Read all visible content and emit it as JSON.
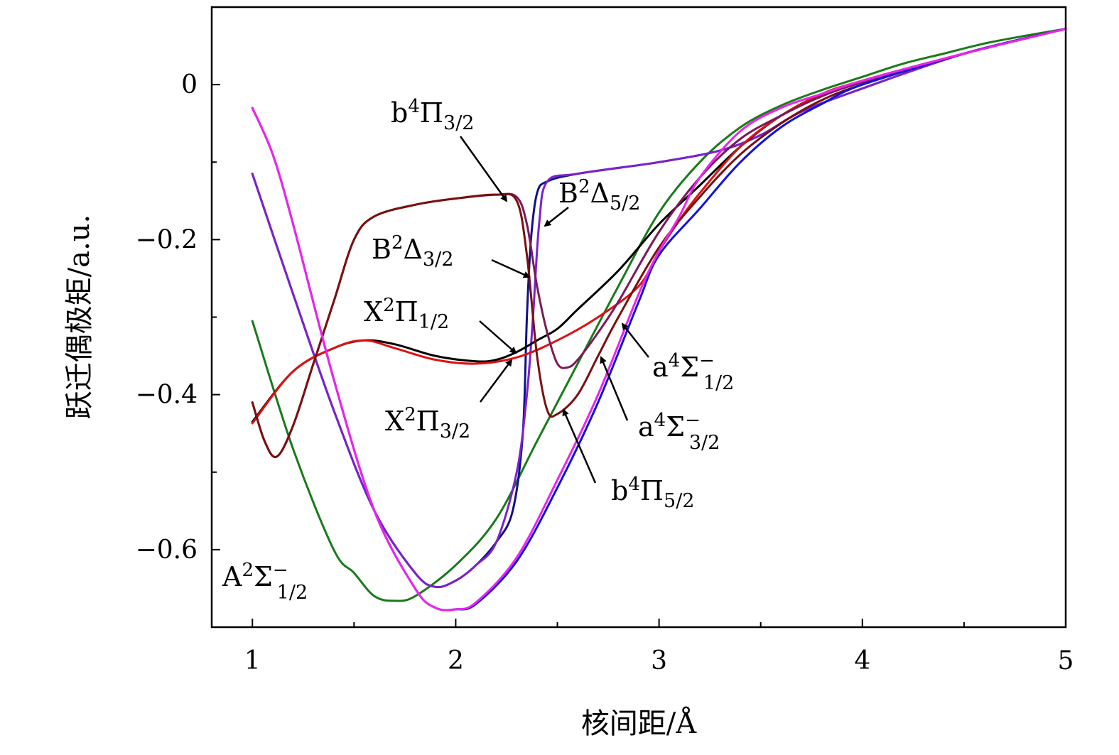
{
  "chart_data": {
    "type": "line",
    "xlabel": "核间距/Å",
    "ylabel": "跃迁偶极矩/a.u.",
    "xlim": [
      0.8,
      5.0
    ],
    "ylim": [
      -0.7,
      0.1
    ],
    "x_ticks": [
      1,
      2,
      3,
      4,
      5
    ],
    "x_tick_labels": [
      "1",
      "2",
      "3",
      "4",
      "5"
    ],
    "y_ticks": [
      0,
      -0.2,
      -0.4,
      -0.6
    ],
    "y_tick_labels": [
      "0",
      "−0.2",
      "−0.4",
      "−0.6"
    ],
    "grid": false,
    "series": [
      {
        "name": "A²Σ⁻₁/₂",
        "color": "#1a7a1a",
        "points": [
          [
            1.0,
            -0.305
          ],
          [
            1.2,
            -0.47
          ],
          [
            1.4,
            -0.6
          ],
          [
            1.5,
            -0.63
          ],
          [
            1.6,
            -0.66
          ],
          [
            1.7,
            -0.666
          ],
          [
            1.8,
            -0.66
          ],
          [
            2.0,
            -0.62
          ],
          [
            2.2,
            -0.56
          ],
          [
            2.4,
            -0.46
          ],
          [
            2.6,
            -0.36
          ],
          [
            2.8,
            -0.26
          ],
          [
            3.0,
            -0.165
          ],
          [
            3.2,
            -0.1
          ],
          [
            3.4,
            -0.055
          ],
          [
            3.6,
            -0.027
          ],
          [
            3.8,
            -0.007
          ],
          [
            4.0,
            0.01
          ],
          [
            4.2,
            0.027
          ],
          [
            4.4,
            0.04
          ],
          [
            4.6,
            0.053
          ],
          [
            4.8,
            0.063
          ],
          [
            5.0,
            0.072
          ]
        ]
      },
      {
        "name": "B²Δ₃/₂",
        "color": "#101088",
        "points": [
          [
            1.0,
            -0.115
          ],
          [
            1.2,
            -0.27
          ],
          [
            1.4,
            -0.42
          ],
          [
            1.6,
            -0.55
          ],
          [
            1.8,
            -0.63
          ],
          [
            1.9,
            -0.648
          ],
          [
            2.0,
            -0.64
          ],
          [
            2.1,
            -0.62
          ],
          [
            2.2,
            -0.59
          ],
          [
            2.28,
            -0.55
          ],
          [
            2.33,
            -0.45
          ],
          [
            2.35,
            -0.3
          ],
          [
            2.37,
            -0.2
          ],
          [
            2.4,
            -0.14
          ],
          [
            2.45,
            -0.125
          ],
          [
            2.6,
            -0.115
          ],
          [
            3.0,
            -0.1
          ],
          [
            3.3,
            -0.085
          ],
          [
            3.5,
            -0.065
          ],
          [
            3.7,
            -0.035
          ],
          [
            4.0,
            -0.005
          ],
          [
            4.5,
            0.04
          ],
          [
            5.0,
            0.072
          ]
        ]
      },
      {
        "name": "B²Δ₅/₂",
        "color": "#7a22cc",
        "points": [
          [
            1.0,
            -0.115
          ],
          [
            1.2,
            -0.27
          ],
          [
            1.4,
            -0.42
          ],
          [
            1.6,
            -0.55
          ],
          [
            1.8,
            -0.63
          ],
          [
            1.9,
            -0.648
          ],
          [
            2.0,
            -0.64
          ],
          [
            2.1,
            -0.62
          ],
          [
            2.2,
            -0.59
          ],
          [
            2.3,
            -0.5
          ],
          [
            2.35,
            -0.4
          ],
          [
            2.38,
            -0.3
          ],
          [
            2.41,
            -0.18
          ],
          [
            2.45,
            -0.125
          ],
          [
            2.6,
            -0.115
          ],
          [
            3.0,
            -0.1
          ],
          [
            3.3,
            -0.085
          ],
          [
            3.5,
            -0.065
          ],
          [
            3.7,
            -0.035
          ],
          [
            4.0,
            -0.005
          ],
          [
            4.5,
            0.04
          ],
          [
            5.0,
            0.072
          ]
        ]
      },
      {
        "name": "X²Π₁/₂",
        "color": "#000000",
        "points": [
          [
            1.0,
            -0.435
          ],
          [
            1.2,
            -0.37
          ],
          [
            1.4,
            -0.34
          ],
          [
            1.55,
            -0.33
          ],
          [
            1.7,
            -0.335
          ],
          [
            1.9,
            -0.35
          ],
          [
            2.1,
            -0.357
          ],
          [
            2.2,
            -0.355
          ],
          [
            2.3,
            -0.345
          ],
          [
            2.4,
            -0.33
          ],
          [
            2.5,
            -0.315
          ],
          [
            2.6,
            -0.29
          ],
          [
            2.8,
            -0.24
          ],
          [
            3.0,
            -0.18
          ],
          [
            3.2,
            -0.13
          ],
          [
            3.4,
            -0.08
          ],
          [
            3.6,
            -0.04
          ],
          [
            3.8,
            -0.015
          ],
          [
            4.0,
            0.005
          ],
          [
            4.5,
            0.04
          ],
          [
            5.0,
            0.072
          ]
        ]
      },
      {
        "name": "X²Π₃/₂",
        "color": "#dd1111",
        "points": [
          [
            1.0,
            -0.437
          ],
          [
            1.2,
            -0.37
          ],
          [
            1.4,
            -0.34
          ],
          [
            1.55,
            -0.33
          ],
          [
            1.7,
            -0.34
          ],
          [
            1.9,
            -0.355
          ],
          [
            2.1,
            -0.36
          ],
          [
            2.3,
            -0.352
          ],
          [
            2.5,
            -0.33
          ],
          [
            2.7,
            -0.3
          ],
          [
            2.9,
            -0.26
          ],
          [
            3.0,
            -0.215
          ],
          [
            3.1,
            -0.175
          ],
          [
            3.2,
            -0.14
          ],
          [
            3.4,
            -0.08
          ],
          [
            3.6,
            -0.04
          ],
          [
            3.8,
            -0.012
          ],
          [
            4.0,
            0.005
          ],
          [
            4.5,
            0.04
          ],
          [
            5.0,
            0.072
          ]
        ]
      },
      {
        "name": "b⁴Π₃/₂",
        "color": "#7a1a5a",
        "points": [
          [
            1.0,
            -0.41
          ],
          [
            1.06,
            -0.46
          ],
          [
            1.12,
            -0.48
          ],
          [
            1.2,
            -0.44
          ],
          [
            1.3,
            -0.36
          ],
          [
            1.4,
            -0.28
          ],
          [
            1.5,
            -0.2
          ],
          [
            1.6,
            -0.17
          ],
          [
            1.8,
            -0.155
          ],
          [
            2.0,
            -0.147
          ],
          [
            2.2,
            -0.142
          ],
          [
            2.3,
            -0.145
          ],
          [
            2.35,
            -0.18
          ],
          [
            2.4,
            -0.26
          ],
          [
            2.45,
            -0.32
          ],
          [
            2.5,
            -0.36
          ],
          [
            2.55,
            -0.365
          ],
          [
            2.6,
            -0.355
          ],
          [
            2.7,
            -0.32
          ],
          [
            2.8,
            -0.28
          ],
          [
            3.0,
            -0.19
          ],
          [
            3.2,
            -0.12
          ],
          [
            3.4,
            -0.07
          ],
          [
            3.6,
            -0.04
          ],
          [
            3.8,
            -0.015
          ],
          [
            4.0,
            0.003
          ],
          [
            4.5,
            0.04
          ],
          [
            5.0,
            0.072
          ]
        ]
      },
      {
        "name": "b⁴Π₅/₂",
        "color": "#7a1010",
        "points": [
          [
            1.0,
            -0.41
          ],
          [
            1.06,
            -0.46
          ],
          [
            1.12,
            -0.48
          ],
          [
            1.2,
            -0.44
          ],
          [
            1.3,
            -0.36
          ],
          [
            1.4,
            -0.28
          ],
          [
            1.5,
            -0.2
          ],
          [
            1.6,
            -0.17
          ],
          [
            1.8,
            -0.155
          ],
          [
            2.0,
            -0.147
          ],
          [
            2.2,
            -0.142
          ],
          [
            2.3,
            -0.15
          ],
          [
            2.35,
            -0.22
          ],
          [
            2.4,
            -0.35
          ],
          [
            2.45,
            -0.42
          ],
          [
            2.5,
            -0.425
          ],
          [
            2.6,
            -0.4
          ],
          [
            2.7,
            -0.35
          ],
          [
            2.8,
            -0.3
          ],
          [
            3.0,
            -0.21
          ],
          [
            3.2,
            -0.145
          ],
          [
            3.4,
            -0.09
          ],
          [
            3.6,
            -0.05
          ],
          [
            3.8,
            -0.02
          ],
          [
            4.0,
            0.0
          ],
          [
            4.5,
            0.04
          ],
          [
            5.0,
            0.072
          ]
        ]
      },
      {
        "name": "a⁴Σ⁻₁/₂",
        "color": "#1111dd",
        "points": [
          [
            1.0,
            -0.03
          ],
          [
            1.1,
            -0.09
          ],
          [
            1.2,
            -0.18
          ],
          [
            1.4,
            -0.38
          ],
          [
            1.6,
            -0.55
          ],
          [
            1.8,
            -0.65
          ],
          [
            1.9,
            -0.675
          ],
          [
            2.0,
            -0.677
          ],
          [
            2.1,
            -0.67
          ],
          [
            2.3,
            -0.615
          ],
          [
            2.5,
            -0.52
          ],
          [
            2.7,
            -0.41
          ],
          [
            2.9,
            -0.28
          ],
          [
            3.0,
            -0.22
          ],
          [
            3.2,
            -0.16
          ],
          [
            3.4,
            -0.1
          ],
          [
            3.6,
            -0.055
          ],
          [
            3.8,
            -0.025
          ],
          [
            4.0,
            0.0
          ],
          [
            4.5,
            0.04
          ],
          [
            5.0,
            0.072
          ]
        ]
      },
      {
        "name": "a⁴Σ⁻₃/₂",
        "color": "#ee22ee",
        "points": [
          [
            1.0,
            -0.03
          ],
          [
            1.1,
            -0.09
          ],
          [
            1.2,
            -0.18
          ],
          [
            1.4,
            -0.38
          ],
          [
            1.6,
            -0.55
          ],
          [
            1.8,
            -0.65
          ],
          [
            1.9,
            -0.675
          ],
          [
            2.0,
            -0.677
          ],
          [
            2.1,
            -0.668
          ],
          [
            2.3,
            -0.61
          ],
          [
            2.5,
            -0.51
          ],
          [
            2.7,
            -0.4
          ],
          [
            2.9,
            -0.27
          ],
          [
            3.0,
            -0.215
          ],
          [
            3.1,
            -0.17
          ],
          [
            3.2,
            -0.12
          ],
          [
            3.4,
            -0.06
          ],
          [
            3.6,
            -0.03
          ],
          [
            3.8,
            -0.012
          ],
          [
            4.0,
            0.005
          ],
          [
            4.5,
            0.04
          ],
          [
            5.0,
            0.072
          ]
        ]
      }
    ],
    "annotations": [
      {
        "id": "b4pi32",
        "main": "b",
        "sup": "4",
        "main2": "Π",
        "sub": "3/2"
      },
      {
        "id": "b2d52",
        "main": "B",
        "sup": "2",
        "main2": "Δ",
        "sub": "5/2"
      },
      {
        "id": "b2d32",
        "main": "B",
        "sup": "2",
        "main2": "Δ",
        "sub": "3/2"
      },
      {
        "id": "x2pi12",
        "main": "X",
        "sup": "2",
        "main2": "Π",
        "sub": "1/2"
      },
      {
        "id": "x2pi32",
        "main": "X",
        "sup": "2",
        "main2": "Π",
        "sub": "3/2"
      },
      {
        "id": "a4s12",
        "main": "a",
        "sup": "4",
        "main2": "Σ",
        "sup2": "−",
        "sub": "1/2"
      },
      {
        "id": "a4s32",
        "main": "a",
        "sup": "4",
        "main2": "Σ",
        "sup2": "−",
        "sub": "3/2"
      },
      {
        "id": "b4pi52",
        "main": "b",
        "sup": "4",
        "main2": "Π",
        "sub": "5/2"
      },
      {
        "id": "a2s12",
        "main": "A",
        "sup": "2",
        "main2": "Σ",
        "sup2": "−",
        "sub": "1/2"
      }
    ]
  }
}
